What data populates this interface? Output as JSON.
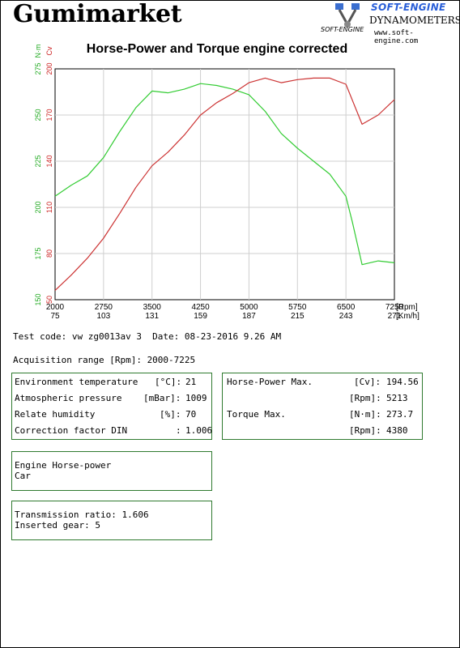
{
  "header": {
    "brand": "Gumimarket",
    "logo_name": "SOFT-ENGINE",
    "logo_subtitle": "DYNAMOMETERS",
    "logo_website": "www.soft-engine.com",
    "logo_mark": "SOFT-ENGINE"
  },
  "chart_data": {
    "type": "line",
    "title": "Horse-Power and Torque engine corrected",
    "x_axis": {
      "unit": "[Rpm]",
      "secondary_unit": "[Km/h]",
      "ticks": [
        2000,
        2750,
        3500,
        4250,
        5000,
        5750,
        6500,
        7250
      ],
      "tick_labels": [
        "2000",
        "2750",
        "3500",
        "4250",
        "5000",
        "5750",
        "6500",
        "7250"
      ],
      "secondary_ticks": [
        "75",
        "103",
        "131",
        "159",
        "187",
        "215",
        "243",
        "271"
      ],
      "range": [
        2000,
        7250
      ]
    },
    "y_axis_torque": {
      "unit": "N·m",
      "ticks": [
        "150",
        "175",
        "200",
        "225",
        "250",
        "275"
      ],
      "range": [
        150,
        275
      ],
      "color": "#22aa22"
    },
    "y_axis_power": {
      "unit": "Cv",
      "ticks": [
        "50",
        "80",
        "110",
        "140",
        "170",
        "200"
      ],
      "range": [
        50,
        200
      ],
      "color": "#cc2222"
    },
    "grid": true,
    "series": [
      {
        "axis": "torque",
        "color": "#33cc33",
        "x": [
          2000,
          2250,
          2500,
          2750,
          3000,
          3250,
          3500,
          3750,
          4000,
          4250,
          4500,
          4750,
          5000,
          5250,
          5500,
          5750,
          6000,
          6250,
          6500,
          6600,
          6750,
          7000,
          7250
        ],
        "y": [
          206,
          212,
          217,
          227,
          241,
          254,
          263,
          262,
          264,
          267,
          266,
          264,
          261,
          252,
          240,
          232,
          225,
          218,
          206,
          192,
          169,
          171,
          170
        ]
      },
      {
        "axis": "power",
        "color": "#cc3333",
        "x": [
          2000,
          2250,
          2500,
          2750,
          3000,
          3250,
          3500,
          3750,
          4000,
          4250,
          4500,
          4750,
          5000,
          5250,
          5500,
          5750,
          6000,
          6250,
          6500,
          6750,
          7000,
          7250
        ],
        "y": [
          56,
          66,
          77,
          90,
          106,
          123,
          137,
          146,
          157,
          170,
          178,
          184,
          191,
          194,
          191,
          193,
          194,
          194,
          190,
          164,
          170,
          180
        ]
      }
    ]
  },
  "info": {
    "test_code_line": "Test code: vw zg0013av 3  Date: 08-23-2016 9.26 AM",
    "acquisition_line": "Acquisition range [Rpm]: 2000-7225"
  },
  "environment": {
    "rows": [
      {
        "label": "Environment temperature",
        "unit": "[°C]:",
        "value": "21"
      },
      {
        "label": "Atmospheric pressure",
        "unit": "[mBar]:",
        "value": "1009"
      },
      {
        "label": "Relate humidity",
        "unit": "[%]:",
        "value": "70"
      },
      {
        "label": "Correction factor DIN",
        "unit": ":",
        "value": "1.006"
      }
    ]
  },
  "results": {
    "hp_label": "Horse-Power Max.",
    "hp_unit": "[Cv]:",
    "hp_value": "194.56",
    "hp_rpm_unit": "[Rpm]:",
    "hp_rpm_value": "5213",
    "torque_label": "Torque Max.",
    "torque_unit": "[N·m]:",
    "torque_value": "273.7",
    "torque_rpm_unit": "[Rpm]:",
    "torque_rpm_value": "4380"
  },
  "engine": {
    "line1": "Engine Horse-power",
    "line2": "Car"
  },
  "transmission": {
    "line1": "Transmission ratio: 1.606",
    "line2": "Inserted gear: 5"
  }
}
